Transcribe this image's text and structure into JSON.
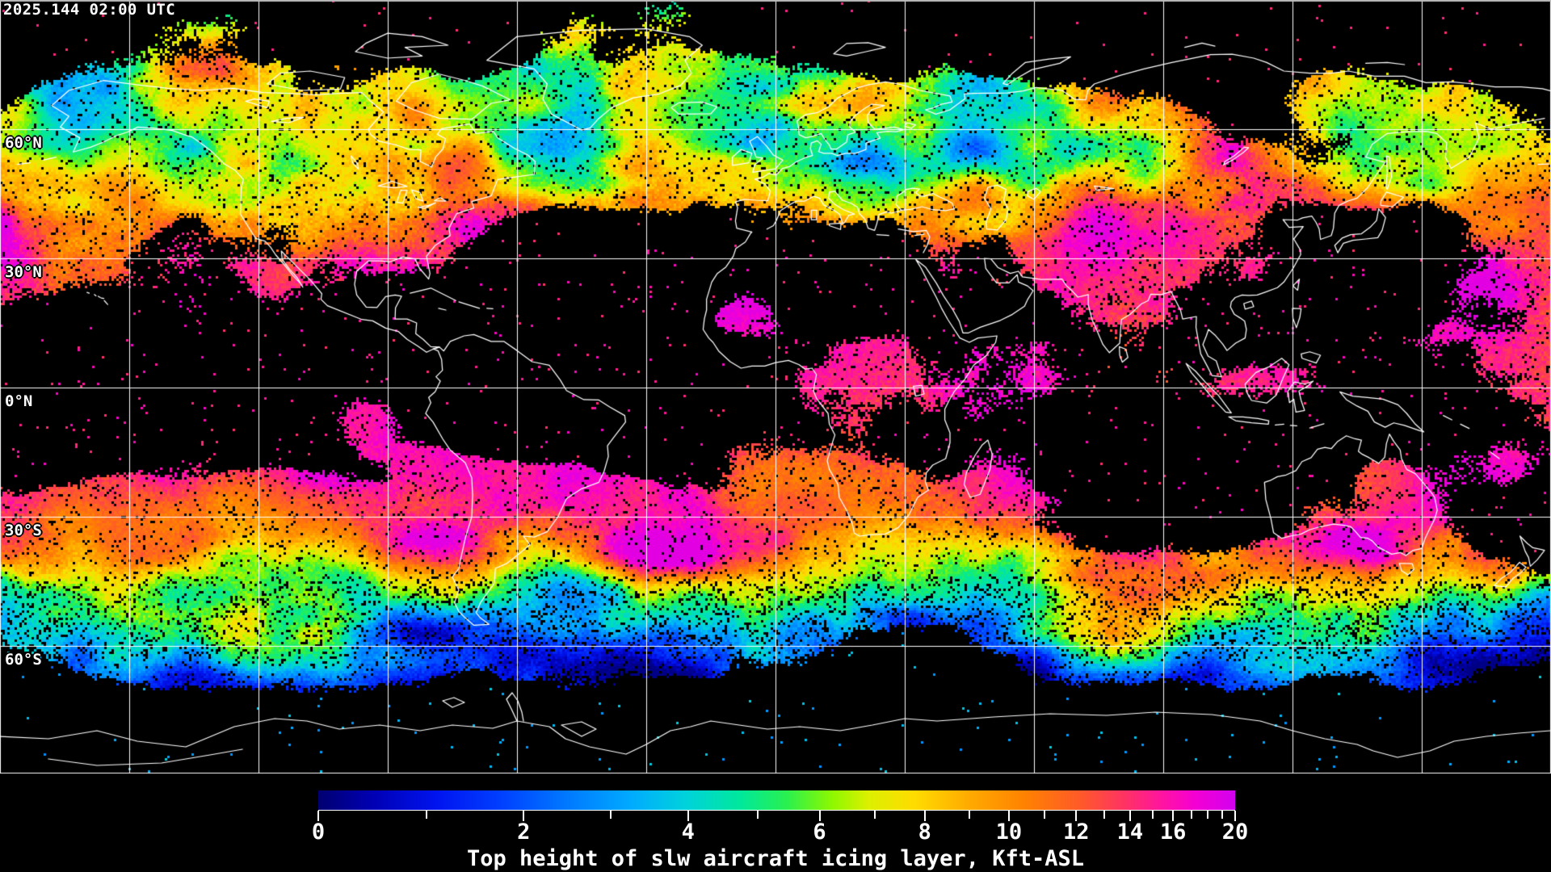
{
  "header": {
    "timestamp": "2025.144 02:00 UTC"
  },
  "map": {
    "background_color": "#000000",
    "grid": {
      "color": "#ffffff",
      "top_border_color": "#bcbcbc",
      "lon_spacing_deg": 30,
      "lat_spacing_deg": 30,
      "lat_lines_deg": [
        60,
        30,
        0,
        -30,
        -60
      ]
    },
    "coastline_color": "#ffffff",
    "lat_labels": [
      {
        "id": "60n",
        "lat": 60,
        "text": "60°N"
      },
      {
        "id": "30n",
        "lat": 30,
        "text": "30°N"
      },
      {
        "id": "0n",
        "lat": 0,
        "text": "0°N"
      },
      {
        "id": "30s",
        "lat": -30,
        "text": "30°S"
      },
      {
        "id": "60s",
        "lat": -60,
        "text": "60°S"
      }
    ]
  },
  "colorbar": {
    "caption": "Top height of slw aircraft icing layer, Kft-ASL",
    "unit": "Kft-ASL",
    "min": 0,
    "max": 20,
    "scale": "nonlinear",
    "tick_values": [
      0,
      1,
      2,
      3,
      4,
      5,
      6,
      7,
      8,
      9,
      10,
      11,
      12,
      13,
      14,
      15,
      16,
      17,
      18,
      19,
      20
    ],
    "labeled_values": [
      0,
      2,
      4,
      6,
      8,
      10,
      12,
      14,
      16,
      20
    ],
    "gradient": [
      {
        "f": 0.0,
        "c": "#000070"
      },
      {
        "f": 0.06,
        "c": "#0000b4"
      },
      {
        "f": 0.13,
        "c": "#0014f0"
      },
      {
        "f": 0.2,
        "c": "#0040ff"
      },
      {
        "f": 0.27,
        "c": "#0078ff"
      },
      {
        "f": 0.34,
        "c": "#00aaff"
      },
      {
        "f": 0.4,
        "c": "#00d2dc"
      },
      {
        "f": 0.46,
        "c": "#00e89c"
      },
      {
        "f": 0.51,
        "c": "#28f050"
      },
      {
        "f": 0.56,
        "c": "#8cf800"
      },
      {
        "f": 0.6,
        "c": "#dcf000"
      },
      {
        "f": 0.65,
        "c": "#ffdc00"
      },
      {
        "f": 0.71,
        "c": "#ffaa00"
      },
      {
        "f": 0.77,
        "c": "#ff8200"
      },
      {
        "f": 0.83,
        "c": "#ff5a28"
      },
      {
        "f": 0.88,
        "c": "#ff3264"
      },
      {
        "f": 0.92,
        "c": "#ff14a0"
      },
      {
        "f": 0.955,
        "c": "#f500d2"
      },
      {
        "f": 1.0,
        "c": "#d200f0"
      }
    ]
  }
}
